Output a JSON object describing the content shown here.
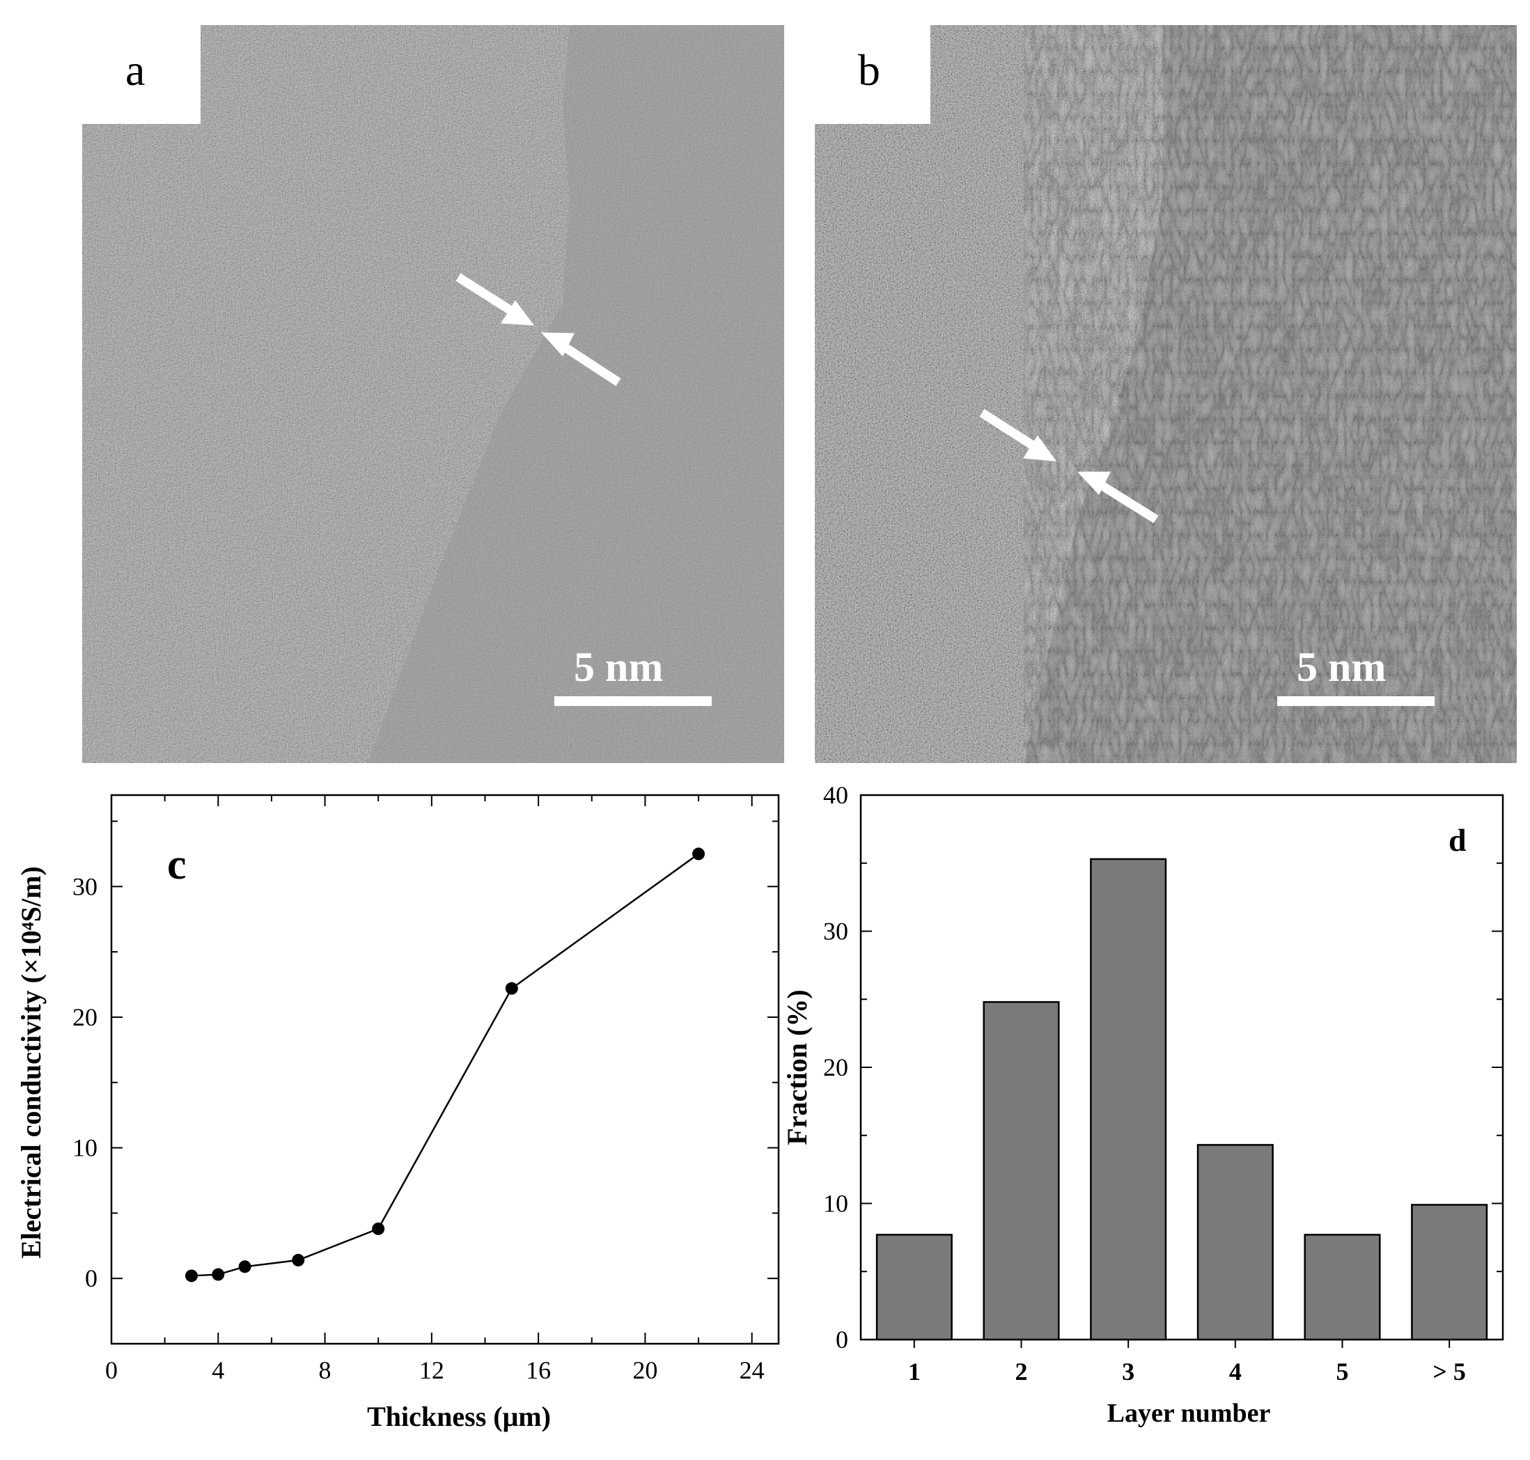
{
  "panels": {
    "a": {
      "letter": "a",
      "scale_bar": "5 nm"
    },
    "b": {
      "letter": "b",
      "scale_bar": "5 nm"
    }
  },
  "chart_data": [
    {
      "panel": "c",
      "type": "line",
      "xlabel": "Thickness (μm)",
      "ylabel": "Electrical conductivity (×10⁴S/m)",
      "xlim": [
        0,
        25
      ],
      "ylim": [
        -5,
        37
      ],
      "xticks": [
        0,
        4,
        8,
        12,
        16,
        20,
        24
      ],
      "yticks": [
        0,
        10,
        20,
        30
      ],
      "x": [
        3,
        4,
        5,
        7,
        10,
        15,
        22
      ],
      "y": [
        0.2,
        0.3,
        0.9,
        1.4,
        3.8,
        22.2,
        32.5
      ],
      "marker": "circle",
      "color": "#000000"
    },
    {
      "panel": "d",
      "type": "bar",
      "xlabel": "Layer number",
      "ylabel": "Fraction (%)",
      "categories": [
        "1",
        "2",
        "3",
        "4",
        "5",
        "> 5"
      ],
      "values": [
        7.7,
        24.8,
        35.3,
        14.3,
        7.7,
        9.9
      ],
      "ylim": [
        0,
        40
      ],
      "yticks": [
        0,
        10,
        20,
        30,
        40
      ],
      "bar_color": "#7a7a7a"
    }
  ]
}
